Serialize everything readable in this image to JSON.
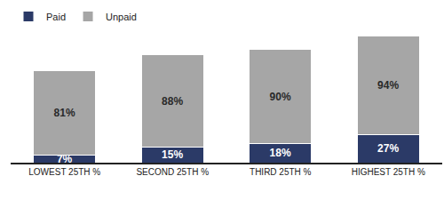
{
  "chart_data": {
    "type": "bar",
    "stacked": true,
    "categories": [
      "LOWEST 25TH %",
      "SECOND 25TH %",
      "THIRD 25TH %",
      "HIGHEST 25TH %"
    ],
    "series": [
      {
        "name": "Paid",
        "color": "#2b3a67",
        "values": [
          7,
          15,
          18,
          27
        ],
        "value_labels": [
          "7%",
          "15%",
          "18%",
          "27%"
        ]
      },
      {
        "name": "Unpaid",
        "color": "#a6a6a6",
        "values": [
          81,
          88,
          90,
          94
        ],
        "value_labels": [
          "81%",
          "88%",
          "90%",
          "94%"
        ]
      }
    ],
    "data_labels": true,
    "legend": "top left",
    "tick_labels": "x",
    "grid": false
  }
}
